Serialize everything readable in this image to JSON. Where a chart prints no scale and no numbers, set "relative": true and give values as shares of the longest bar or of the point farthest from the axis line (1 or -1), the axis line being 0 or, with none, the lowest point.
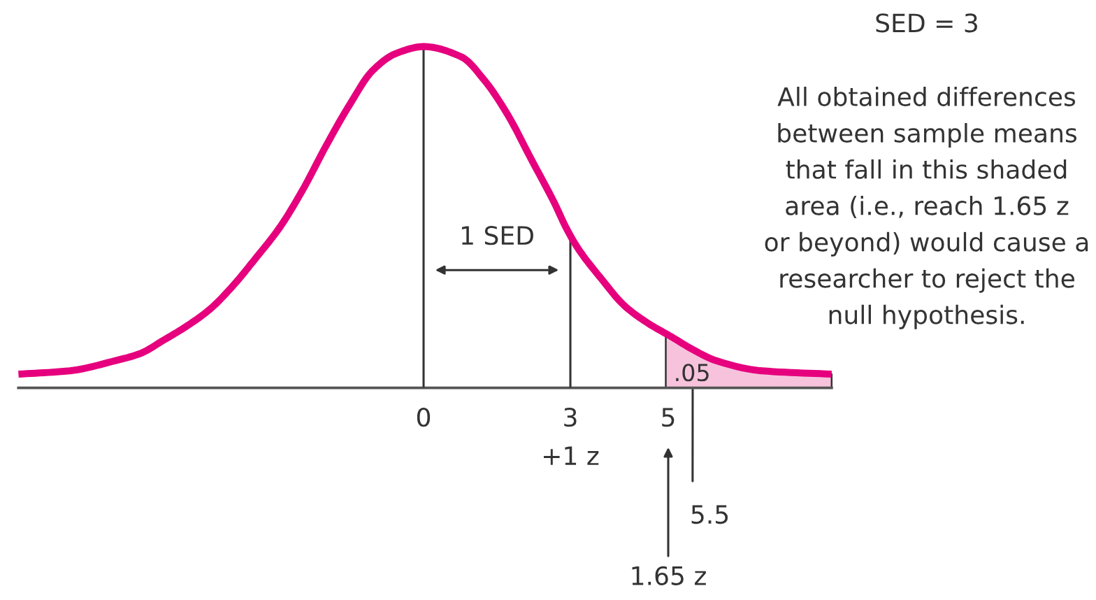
{
  "chart_data": {
    "type": "line",
    "relative": true,
    "series": [
      {
        "type": "area",
        "color": "#f7c3dc",
        "x": [
          4.95,
          5.06,
          5.53,
          5.97,
          6.91,
          8.34
        ],
        "values": [
          0.16,
          0.15,
          0.11,
          0.08,
          0.05,
          0.04
        ]
      },
      {
        "color": "#e6007e",
        "x": [
          -8.28,
          -7.23,
          -6.29,
          -5.8,
          -5.31,
          -4.85,
          -4.37,
          -3.89,
          -3.43,
          -2.94,
          -2.47,
          -1.99,
          -1.51,
          -1.04,
          -0.56,
          0,
          0.77,
          1.25,
          1.72,
          2.2,
          2.68,
          2.91,
          3.15,
          3.63,
          4.11,
          4.58,
          5.06,
          5.53,
          5.97,
          6.91,
          8.34
        ],
        "values": [
          0.04,
          0.05,
          0.08,
          0.1,
          0.14,
          0.18,
          0.23,
          0.3,
          0.38,
          0.47,
          0.58,
          0.71,
          0.83,
          0.93,
          0.98,
          1.0,
          0.97,
          0.9,
          0.8,
          0.67,
          0.54,
          0.47,
          0.41,
          0.32,
          0.24,
          0.19,
          0.15,
          0.11,
          0.08,
          0.05,
          0.04
        ]
      }
    ],
    "xlim": [
      -8.28,
      8.34
    ],
    "xticks": [
      0,
      {
        "value": 3,
        "label": "3\n+1 z"
      },
      5
    ],
    "tick_labels": "x",
    "ref_lines": [
      {
        "axis": "x",
        "value": 0
      },
      {
        "axis": "x",
        "value": 3
      }
    ],
    "annotations": [
      "SED = 3",
      "All obtained differences\nbetween sample means\nthat fall in this shaded\narea (i.e., reach 1.65 z\nor beyond) would cause a\nresearcher to reject the\nnull hypothesis.",
      "1 SED",
      {
        "text": ".05",
        "x": 4.95,
        "y": 0
      },
      {
        "text": "5.5",
        "x": 5.5,
        "y": 0
      },
      "1.65 z"
    ]
  }
}
